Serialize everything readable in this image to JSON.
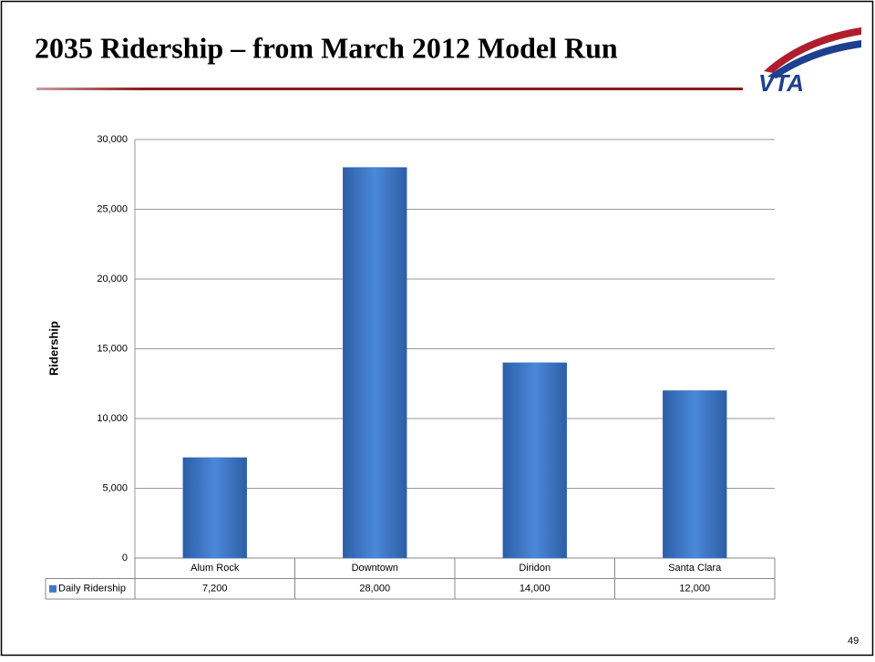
{
  "title": "2035 Ridership – from March 2012 Model Run",
  "logo": "VTA",
  "page_number": "49",
  "chart_data": {
    "type": "bar",
    "y_label": "Ridership",
    "categories": [
      "Alum Rock",
      "Downtown",
      "Diridon",
      "Santa Clara"
    ],
    "series": [
      {
        "name": "Daily Ridership",
        "color": "#3f77c8",
        "values": [
          7200,
          28000,
          14000,
          12000
        ],
        "value_labels": [
          "7,200",
          "28,000",
          "14,000",
          "12,000"
        ]
      }
    ],
    "ylim": [
      0,
      30000
    ],
    "yticks": [
      0,
      {
        "value": 5000,
        "label": "5,000"
      },
      {
        "value": 10000,
        "label": "10,000"
      },
      {
        "value": 15000,
        "label": "15,000"
      },
      {
        "value": 20000,
        "label": "20,000"
      },
      {
        "value": 25000,
        "label": "25,000"
      },
      {
        "value": 30000,
        "label": "30,000"
      }
    ],
    "grid": true
  }
}
